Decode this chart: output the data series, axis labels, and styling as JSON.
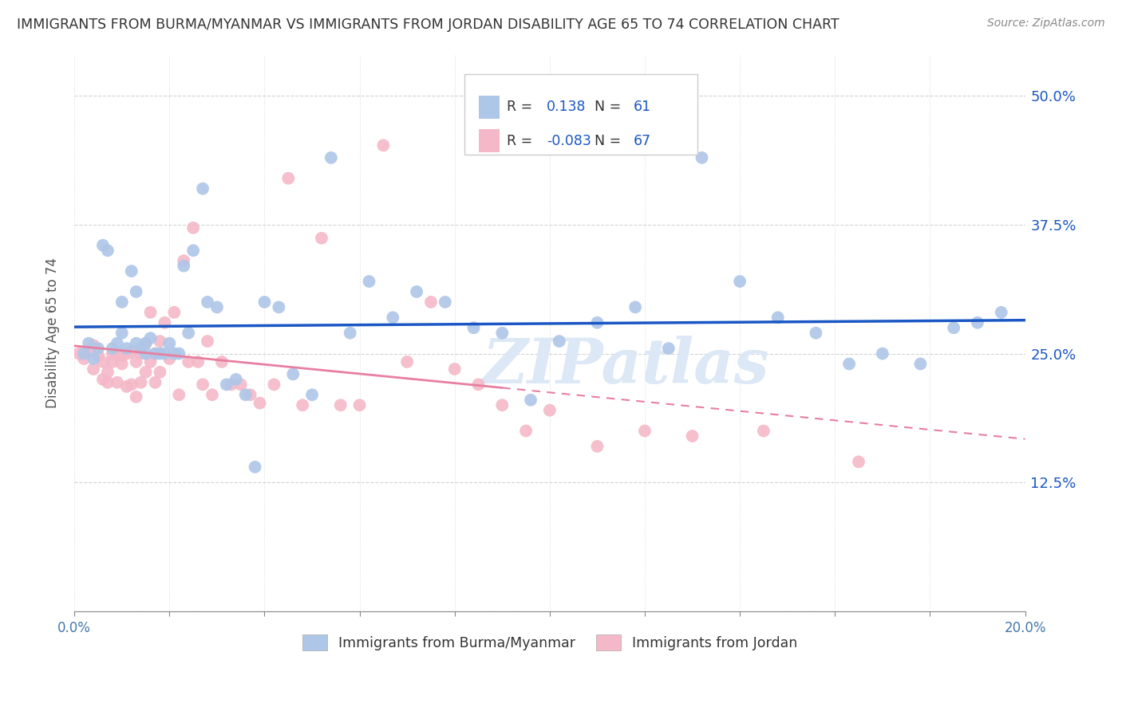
{
  "title": "IMMIGRANTS FROM BURMA/MYANMAR VS IMMIGRANTS FROM JORDAN DISABILITY AGE 65 TO 74 CORRELATION CHART",
  "source": "Source: ZipAtlas.com",
  "ylabel": "Disability Age 65 to 74",
  "ytick_labels": [
    "",
    "12.5%",
    "25.0%",
    "37.5%",
    "50.0%"
  ],
  "ytick_values": [
    0.0,
    0.125,
    0.25,
    0.375,
    0.5
  ],
  "xlim": [
    0.0,
    0.2
  ],
  "ylim": [
    0.0,
    0.54
  ],
  "R_blue": 0.138,
  "N_blue": 61,
  "R_pink": -0.083,
  "N_pink": 67,
  "legend_label_blue": "Immigrants from Burma/Myanmar",
  "legend_label_pink": "Immigrants from Jordan",
  "scatter_blue_x": [
    0.002,
    0.003,
    0.004,
    0.005,
    0.006,
    0.007,
    0.008,
    0.009,
    0.01,
    0.01,
    0.011,
    0.012,
    0.013,
    0.013,
    0.014,
    0.015,
    0.015,
    0.016,
    0.017,
    0.018,
    0.019,
    0.02,
    0.021,
    0.022,
    0.023,
    0.024,
    0.025,
    0.027,
    0.028,
    0.03,
    0.032,
    0.034,
    0.036,
    0.038,
    0.04,
    0.043,
    0.046,
    0.05,
    0.054,
    0.058,
    0.062,
    0.067,
    0.072,
    0.078,
    0.084,
    0.09,
    0.096,
    0.102,
    0.11,
    0.118,
    0.125,
    0.132,
    0.14,
    0.148,
    0.156,
    0.163,
    0.17,
    0.178,
    0.185,
    0.19,
    0.195
  ],
  "scatter_blue_y": [
    0.25,
    0.26,
    0.245,
    0.255,
    0.355,
    0.35,
    0.255,
    0.26,
    0.27,
    0.3,
    0.255,
    0.33,
    0.26,
    0.31,
    0.255,
    0.25,
    0.26,
    0.265,
    0.25,
    0.25,
    0.25,
    0.26,
    0.25,
    0.25,
    0.335,
    0.27,
    0.35,
    0.41,
    0.3,
    0.295,
    0.22,
    0.225,
    0.21,
    0.14,
    0.3,
    0.295,
    0.23,
    0.21,
    0.44,
    0.27,
    0.32,
    0.285,
    0.31,
    0.3,
    0.275,
    0.27,
    0.205,
    0.262,
    0.28,
    0.295,
    0.255,
    0.44,
    0.32,
    0.285,
    0.27,
    0.24,
    0.25,
    0.24,
    0.275,
    0.28,
    0.29
  ],
  "scatter_pink_x": [
    0.001,
    0.002,
    0.003,
    0.004,
    0.004,
    0.005,
    0.006,
    0.006,
    0.007,
    0.007,
    0.008,
    0.008,
    0.009,
    0.009,
    0.01,
    0.01,
    0.011,
    0.011,
    0.012,
    0.012,
    0.013,
    0.013,
    0.014,
    0.014,
    0.015,
    0.015,
    0.016,
    0.016,
    0.017,
    0.017,
    0.018,
    0.018,
    0.019,
    0.02,
    0.021,
    0.022,
    0.023,
    0.024,
    0.025,
    0.026,
    0.027,
    0.028,
    0.029,
    0.031,
    0.033,
    0.035,
    0.037,
    0.039,
    0.042,
    0.045,
    0.048,
    0.052,
    0.056,
    0.06,
    0.065,
    0.07,
    0.075,
    0.08,
    0.085,
    0.09,
    0.095,
    0.1,
    0.11,
    0.12,
    0.13,
    0.145,
    0.165
  ],
  "scatter_pink_y": [
    0.25,
    0.245,
    0.252,
    0.235,
    0.258,
    0.248,
    0.242,
    0.225,
    0.232,
    0.222,
    0.25,
    0.242,
    0.25,
    0.222,
    0.248,
    0.24,
    0.25,
    0.218,
    0.252,
    0.22,
    0.242,
    0.208,
    0.25,
    0.222,
    0.232,
    0.26,
    0.29,
    0.242,
    0.25,
    0.222,
    0.232,
    0.262,
    0.28,
    0.245,
    0.29,
    0.21,
    0.34,
    0.242,
    0.372,
    0.242,
    0.22,
    0.262,
    0.21,
    0.242,
    0.22,
    0.22,
    0.21,
    0.202,
    0.22,
    0.42,
    0.2,
    0.362,
    0.2,
    0.2,
    0.452,
    0.242,
    0.3,
    0.235,
    0.22,
    0.2,
    0.175,
    0.195,
    0.16,
    0.175,
    0.17,
    0.175,
    0.145
  ],
  "color_blue": "#aec6e8",
  "color_pink": "#f4b8c8",
  "line_blue": "#1a56c4",
  "line_pink": "#e87fa0",
  "watermark": "ZIPatlas",
  "background_color": "#ffffff",
  "grid_color": "#c8c8c8"
}
